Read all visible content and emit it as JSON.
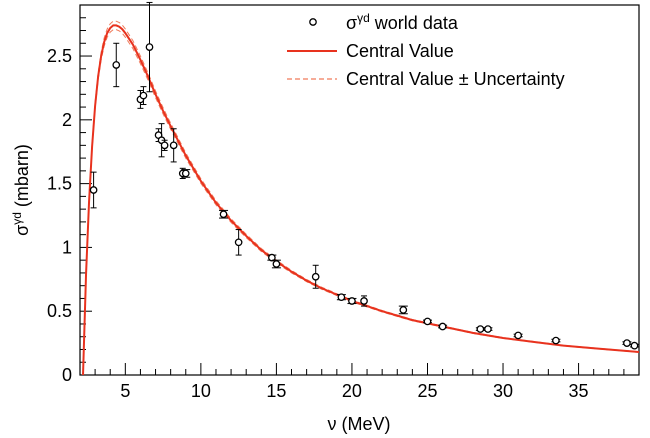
{
  "chart_data": {
    "type": "scatter",
    "title": "",
    "xlabel": "ν (MeV)",
    "ylabel": "σγd (mbarn)",
    "ylabel_parts": {
      "main": "σ",
      "sup": "γd",
      "rest": " (mbarn)"
    },
    "xlim": [
      2.0,
      39.0
    ],
    "ylim": [
      0,
      2.9
    ],
    "x_ticks": [
      5,
      10,
      15,
      20,
      25,
      30,
      35
    ],
    "y_ticks": [
      0,
      0.5,
      1,
      1.5,
      2,
      2.5
    ],
    "y_tick_labels": [
      "0",
      "0.5",
      "1",
      "1.5",
      "2",
      "2.5"
    ],
    "grid": false,
    "legend_position": "top-right",
    "legend": [
      {
        "kind": "markers",
        "label_main": "σ",
        "label_sup": "γd",
        "label_rest": " world data"
      },
      {
        "kind": "line",
        "label": "Central Value"
      },
      {
        "kind": "dashed-line",
        "label": "Central Value ± Uncertainty"
      }
    ],
    "colors": {
      "curve": "#e8321e",
      "band": "#f07a5a",
      "points": "#000000"
    },
    "series": [
      {
        "name": "σγd world data",
        "kind": "points",
        "points": [
          {
            "x": 2.9,
            "y": 1.45,
            "err": 0.14
          },
          {
            "x": 4.4,
            "y": 2.43,
            "err": 0.17
          },
          {
            "x": 6.0,
            "y": 2.16,
            "err": 0.07
          },
          {
            "x": 6.2,
            "y": 2.19,
            "err": 0.07
          },
          {
            "x": 6.6,
            "y": 2.57,
            "err": 0.35
          },
          {
            "x": 7.2,
            "y": 1.88,
            "err": 0.05
          },
          {
            "x": 7.4,
            "y": 1.84,
            "err": 0.13
          },
          {
            "x": 7.6,
            "y": 1.8,
            "err": 0.04
          },
          {
            "x": 8.2,
            "y": 1.8,
            "err": 0.13
          },
          {
            "x": 8.8,
            "y": 1.58,
            "err": 0.04
          },
          {
            "x": 9.0,
            "y": 1.58,
            "err": 0.03
          },
          {
            "x": 11.5,
            "y": 1.26,
            "err": 0.03
          },
          {
            "x": 12.5,
            "y": 1.04,
            "err": 0.1
          },
          {
            "x": 14.7,
            "y": 0.92,
            "err": 0.02
          },
          {
            "x": 15.0,
            "y": 0.87,
            "err": 0.03
          },
          {
            "x": 17.6,
            "y": 0.77,
            "err": 0.09
          },
          {
            "x": 19.3,
            "y": 0.61,
            "err": 0.02
          },
          {
            "x": 20.0,
            "y": 0.58,
            "err": 0.02
          },
          {
            "x": 20.8,
            "y": 0.58,
            "err": 0.04
          },
          {
            "x": 23.4,
            "y": 0.51,
            "err": 0.03
          },
          {
            "x": 25.0,
            "y": 0.42,
            "err": 0.01
          },
          {
            "x": 26.0,
            "y": 0.38,
            "err": 0.01
          },
          {
            "x": 28.5,
            "y": 0.36,
            "err": 0.01
          },
          {
            "x": 29.0,
            "y": 0.36,
            "err": 0.01
          },
          {
            "x": 31.0,
            "y": 0.31,
            "err": 0.01
          },
          {
            "x": 33.5,
            "y": 0.27,
            "err": 0.01
          },
          {
            "x": 38.2,
            "y": 0.25,
            "err": 0.01
          },
          {
            "x": 38.7,
            "y": 0.23,
            "err": 0.01
          }
        ]
      },
      {
        "name": "Central Value",
        "kind": "line",
        "x": [
          2.2,
          2.4,
          2.6,
          2.8,
          3.0,
          3.2,
          3.4,
          3.6,
          3.8,
          4.0,
          4.2,
          4.4,
          4.6,
          4.8,
          5.0,
          5.5,
          6.0,
          6.5,
          7.0,
          7.5,
          8.0,
          9.0,
          10.0,
          11.0,
          12.0,
          13.0,
          14.0,
          15.0,
          16.0,
          17.0,
          18.0,
          20.0,
          22.0,
          24.0,
          26.0,
          28.0,
          30.0,
          32.0,
          34.0,
          36.0,
          38.0,
          39.0
        ],
        "y": [
          0.0,
          0.79,
          1.36,
          1.79,
          2.11,
          2.34,
          2.5,
          2.61,
          2.68,
          2.72,
          2.74,
          2.74,
          2.73,
          2.71,
          2.68,
          2.59,
          2.47,
          2.34,
          2.2,
          2.07,
          1.95,
          1.72,
          1.52,
          1.35,
          1.21,
          1.09,
          0.98,
          0.89,
          0.81,
          0.74,
          0.68,
          0.58,
          0.5,
          0.43,
          0.38,
          0.33,
          0.29,
          0.26,
          0.23,
          0.21,
          0.19,
          0.18
        ]
      }
    ],
    "uncertainty_band": {
      "relative": 0.012
    }
  }
}
